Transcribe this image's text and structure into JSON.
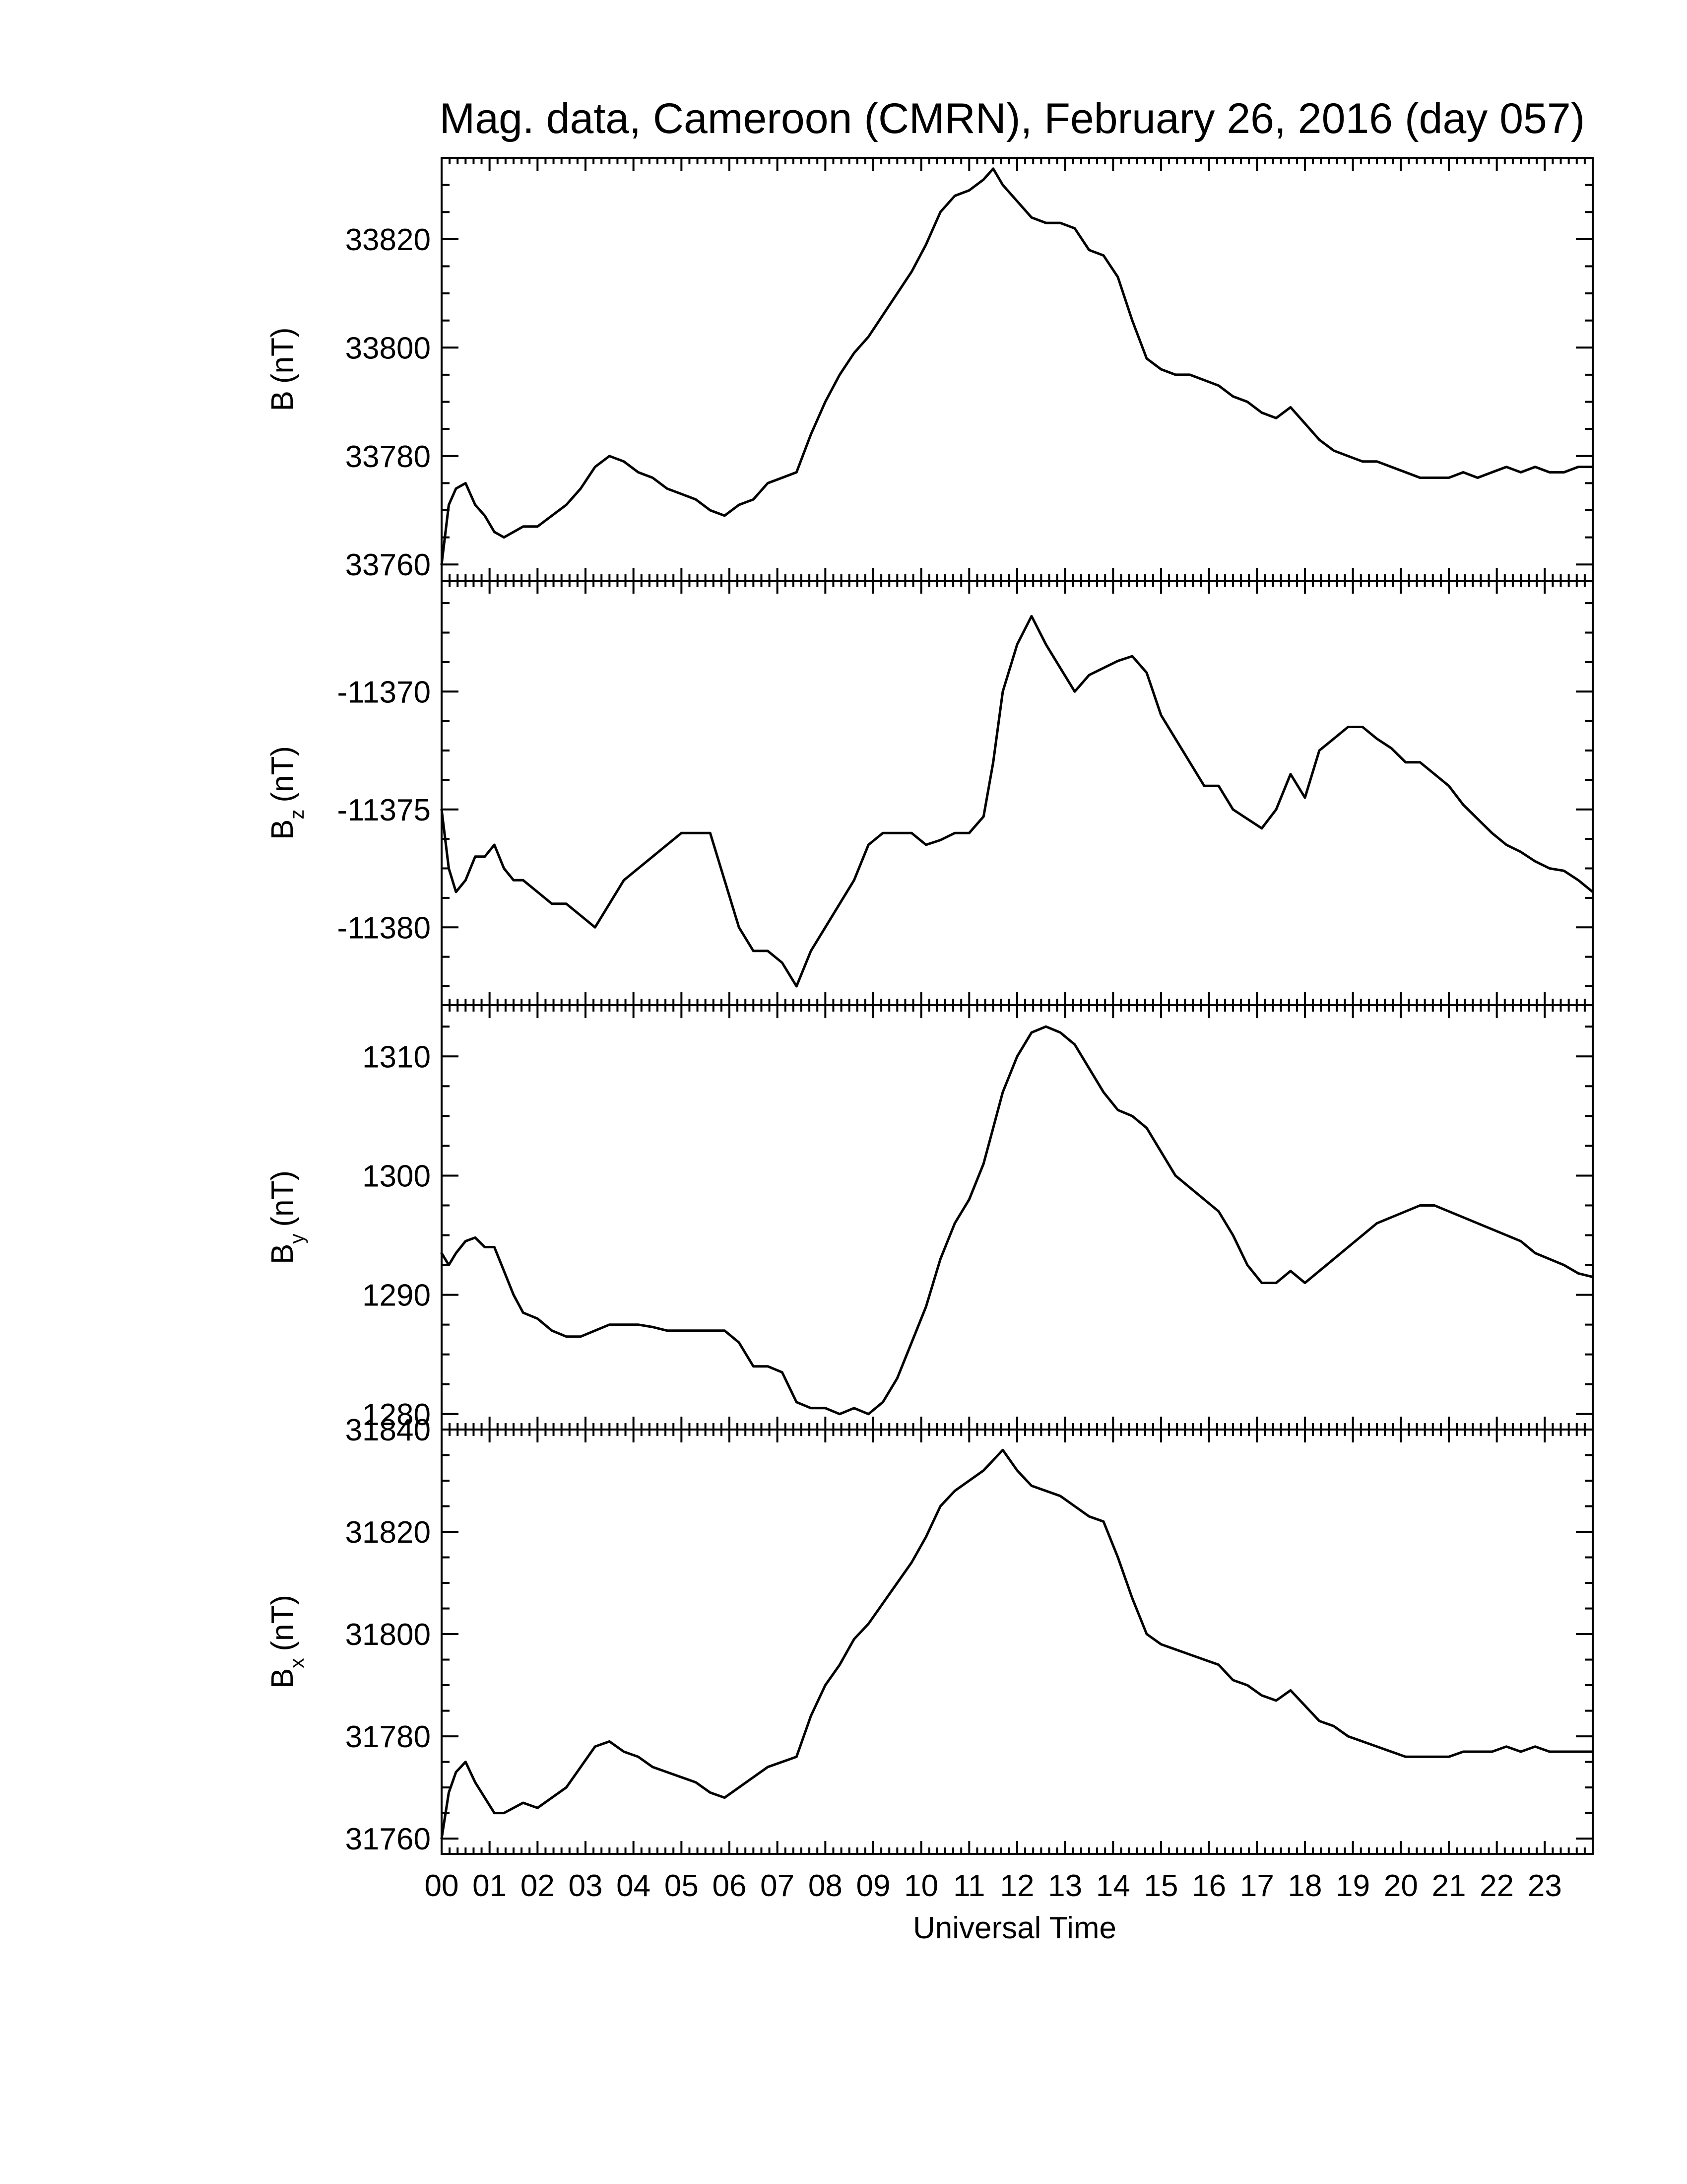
{
  "figure": {
    "title": "Mag. data, Cameroon (CMRN), February 26, 2016 (day 057)",
    "xlabel": "Universal Time"
  },
  "chart_data": [
    {
      "type": "line",
      "panel": "B",
      "ylabel": "B (nT)",
      "ylabel_main": "B",
      "ylabel_sub": "",
      "ylabel_unit": "(nT)",
      "xlim": [
        0,
        24
      ],
      "ylim": [
        33757,
        33835
      ],
      "yticks": [
        33760,
        33780,
        33800,
        33820
      ],
      "x": [
        0,
        0.15,
        0.3,
        0.5,
        0.7,
        0.9,
        1.1,
        1.3,
        1.5,
        1.7,
        2.0,
        2.3,
        2.6,
        2.9,
        3.2,
        3.5,
        3.8,
        4.1,
        4.4,
        4.7,
        5.0,
        5.3,
        5.6,
        5.9,
        6.2,
        6.5,
        6.8,
        7.1,
        7.4,
        7.7,
        8.0,
        8.3,
        8.6,
        8.9,
        9.2,
        9.5,
        9.8,
        10.1,
        10.4,
        10.7,
        11.0,
        11.3,
        11.5,
        11.7,
        12.0,
        12.3,
        12.6,
        12.9,
        13.2,
        13.5,
        13.8,
        14.1,
        14.4,
        14.7,
        15.0,
        15.3,
        15.6,
        15.9,
        16.2,
        16.5,
        16.8,
        17.1,
        17.4,
        17.7,
        18.0,
        18.3,
        18.6,
        18.9,
        19.2,
        19.5,
        19.8,
        20.1,
        20.4,
        20.7,
        21.0,
        21.3,
        21.6,
        21.9,
        22.2,
        22.5,
        22.8,
        23.1,
        23.4,
        23.7,
        24.0
      ],
      "series": [
        {
          "values": [
            33760,
            33771,
            33774,
            33775,
            33771,
            33769,
            33766,
            33765,
            33766,
            33767,
            33767,
            33769,
            33771,
            33774,
            33778,
            33780,
            33779,
            33777,
            33776,
            33774,
            33773,
            33772,
            33770,
            33769,
            33771,
            33772,
            33775,
            33776,
            33777,
            33784,
            33790,
            33795,
            33799,
            33802,
            33806,
            33810,
            33814,
            33819,
            33825,
            33828,
            33829,
            33831,
            33833,
            33830,
            33827,
            33824,
            33823,
            33823,
            33822,
            33818,
            33817,
            33813,
            33805,
            33798,
            33796,
            33795,
            33795,
            33794,
            33793,
            33791,
            33790,
            33788,
            33787,
            33789,
            33786,
            33783,
            33781,
            33780,
            33779,
            33779,
            33778,
            33777,
            33776,
            33776,
            33776,
            33777,
            33776,
            33777,
            33778,
            33777,
            33778,
            33777,
            33777,
            33778,
            33778
          ]
        }
      ]
    },
    {
      "type": "line",
      "panel": "Bz",
      "ylabel": "Bz (nT)",
      "ylabel_main": "B",
      "ylabel_sub": "z",
      "ylabel_unit": "(nT)",
      "xlim": [
        0,
        24
      ],
      "ylim": [
        -11383.3,
        -11365.3
      ],
      "yticks": [
        -11370,
        -11375,
        -11380
      ],
      "x": [
        0,
        0.15,
        0.3,
        0.5,
        0.7,
        0.9,
        1.1,
        1.3,
        1.5,
        1.7,
        2.0,
        2.3,
        2.6,
        2.9,
        3.2,
        3.5,
        3.8,
        4.1,
        4.4,
        4.7,
        5.0,
        5.3,
        5.6,
        5.9,
        6.2,
        6.5,
        6.8,
        7.1,
        7.4,
        7.7,
        8.0,
        8.3,
        8.6,
        8.9,
        9.2,
        9.5,
        9.8,
        10.1,
        10.4,
        10.7,
        11.0,
        11.3,
        11.5,
        11.7,
        12.0,
        12.3,
        12.6,
        12.9,
        13.2,
        13.5,
        13.8,
        14.1,
        14.4,
        14.7,
        15.0,
        15.3,
        15.6,
        15.9,
        16.2,
        16.5,
        16.8,
        17.1,
        17.4,
        17.7,
        18.0,
        18.3,
        18.6,
        18.9,
        19.2,
        19.5,
        19.8,
        20.1,
        20.4,
        20.7,
        21.0,
        21.3,
        21.6,
        21.9,
        22.2,
        22.5,
        22.8,
        23.1,
        23.4,
        23.7,
        24.0
      ],
      "series": [
        {
          "values": [
            -11375,
            -11377.5,
            -11378.5,
            -11378,
            -11377,
            -11377,
            -11376.5,
            -11377.5,
            -11378,
            -11378,
            -11378.5,
            -11379,
            -11379,
            -11379.5,
            -11380,
            -11379,
            -11378,
            -11377.5,
            -11377,
            -11376.5,
            -11376,
            -11376,
            -11376,
            -11378,
            -11380,
            -11381,
            -11381,
            -11381.5,
            -11382.5,
            -11381,
            -11380,
            -11379,
            -11378,
            -11376.5,
            -11376,
            -11376,
            -11376,
            -11376.5,
            -11376.3,
            -11376,
            -11376,
            -11375.3,
            -11373,
            -11370,
            -11368,
            -11366.8,
            -11368,
            -11369,
            -11370,
            -11369.3,
            -11369,
            -11368.7,
            -11368.5,
            -11369.2,
            -11371,
            -11372,
            -11373,
            -11374,
            -11374,
            -11375,
            -11375.4,
            -11375.8,
            -11375,
            -11373.5,
            -11374.5,
            -11372.5,
            -11372,
            -11371.5,
            -11371.5,
            -11372,
            -11372.4,
            -11373,
            -11373,
            -11373.5,
            -11374,
            -11374.8,
            -11375.4,
            -11376,
            -11376.5,
            -11376.8,
            -11377.2,
            -11377.5,
            -11377.6,
            -11378,
            -11378.5
          ]
        }
      ]
    },
    {
      "type": "line",
      "panel": "By",
      "ylabel": "By (nT)",
      "ylabel_main": "B",
      "ylabel_sub": "y",
      "ylabel_unit": "(nT)",
      "xlim": [
        0,
        24
      ],
      "ylim": [
        1278.7,
        1314.3
      ],
      "yticks": [
        1280,
        1290,
        1300,
        1310
      ],
      "x": [
        0,
        0.15,
        0.3,
        0.5,
        0.7,
        0.9,
        1.1,
        1.3,
        1.5,
        1.7,
        2.0,
        2.3,
        2.6,
        2.9,
        3.2,
        3.5,
        3.8,
        4.1,
        4.4,
        4.7,
        5.0,
        5.3,
        5.6,
        5.9,
        6.2,
        6.5,
        6.8,
        7.1,
        7.4,
        7.7,
        8.0,
        8.3,
        8.6,
        8.9,
        9.2,
        9.5,
        9.8,
        10.1,
        10.4,
        10.7,
        11.0,
        11.3,
        11.5,
        11.7,
        12.0,
        12.3,
        12.6,
        12.9,
        13.2,
        13.5,
        13.8,
        14.1,
        14.4,
        14.7,
        15.0,
        15.3,
        15.6,
        15.9,
        16.2,
        16.5,
        16.8,
        17.1,
        17.4,
        17.7,
        18.0,
        18.3,
        18.6,
        18.9,
        19.2,
        19.5,
        19.8,
        20.1,
        20.4,
        20.7,
        21.0,
        21.3,
        21.6,
        21.9,
        22.2,
        22.5,
        22.8,
        23.1,
        23.4,
        23.7,
        24.0
      ],
      "series": [
        {
          "values": [
            1293.5,
            1292.5,
            1293.5,
            1294.5,
            1294.8,
            1294,
            1294,
            1292,
            1290,
            1288.5,
            1288,
            1287,
            1286.5,
            1286.5,
            1287,
            1287.5,
            1287.5,
            1287.5,
            1287.3,
            1287,
            1287,
            1287,
            1287,
            1287,
            1286,
            1284,
            1284,
            1283.5,
            1281,
            1280.5,
            1280.5,
            1280,
            1280.5,
            1280,
            1281,
            1283,
            1286,
            1289,
            1293,
            1296,
            1298,
            1301,
            1304,
            1307,
            1310,
            1312,
            1312.5,
            1312,
            1311,
            1309,
            1307,
            1305.5,
            1305,
            1304,
            1302,
            1300,
            1299,
            1298,
            1297,
            1295,
            1292.5,
            1291,
            1291,
            1292,
            1291,
            1292,
            1293,
            1294,
            1295,
            1296,
            1296.5,
            1297,
            1297.5,
            1297.5,
            1297,
            1296.5,
            1296,
            1295.5,
            1295,
            1294.5,
            1293.5,
            1293,
            1292.5,
            1291.8,
            1291.5
          ]
        }
      ]
    },
    {
      "type": "line",
      "panel": "Bx",
      "ylabel": "Bx (nT)",
      "ylabel_main": "B",
      "ylabel_sub": "x",
      "ylabel_unit": "(nT)",
      "xlim": [
        0,
        24
      ],
      "ylim": [
        31757,
        31840
      ],
      "yticks": [
        31760,
        31780,
        31800,
        31820,
        31840
      ],
      "x": [
        0,
        0.15,
        0.3,
        0.5,
        0.7,
        0.9,
        1.1,
        1.3,
        1.5,
        1.7,
        2.0,
        2.3,
        2.6,
        2.9,
        3.2,
        3.5,
        3.8,
        4.1,
        4.4,
        4.7,
        5.0,
        5.3,
        5.6,
        5.9,
        6.2,
        6.5,
        6.8,
        7.1,
        7.4,
        7.7,
        8.0,
        8.3,
        8.6,
        8.9,
        9.2,
        9.5,
        9.8,
        10.1,
        10.4,
        10.7,
        11.0,
        11.3,
        11.5,
        11.7,
        12.0,
        12.3,
        12.6,
        12.9,
        13.2,
        13.5,
        13.8,
        14.1,
        14.4,
        14.7,
        15.0,
        15.3,
        15.6,
        15.9,
        16.2,
        16.5,
        16.8,
        17.1,
        17.4,
        17.7,
        18.0,
        18.3,
        18.6,
        18.9,
        19.2,
        19.5,
        19.8,
        20.1,
        20.4,
        20.7,
        21.0,
        21.3,
        21.6,
        21.9,
        22.2,
        22.5,
        22.8,
        23.1,
        23.4,
        23.7,
        24.0
      ],
      "series": [
        {
          "values": [
            31760,
            31769,
            31773,
            31775,
            31771,
            31768,
            31765,
            31765,
            31766,
            31767,
            31766,
            31768,
            31770,
            31774,
            31778,
            31779,
            31777,
            31776,
            31774,
            31773,
            31772,
            31771,
            31769,
            31768,
            31770,
            31772,
            31774,
            31775,
            31776,
            31784,
            31790,
            31794,
            31799,
            31802,
            31806,
            31810,
            31814,
            31819,
            31825,
            31828,
            31830,
            31832,
            31834,
            31836,
            31832,
            31829,
            31828,
            31827,
            31825,
            31823,
            31822,
            31815,
            31807,
            31800,
            31798,
            31797,
            31796,
            31795,
            31794,
            31791,
            31790,
            31788,
            31787,
            31789,
            31786,
            31783,
            31782,
            31780,
            31779,
            31778,
            31777,
            31776,
            31776,
            31776,
            31776,
            31777,
            31777,
            31777,
            31778,
            31777,
            31778,
            31777,
            31777,
            31777,
            31777
          ]
        }
      ]
    }
  ],
  "x_ticks": [
    "00",
    "01",
    "02",
    "03",
    "04",
    "05",
    "06",
    "07",
    "08",
    "09",
    "10",
    "11",
    "12",
    "13",
    "14",
    "15",
    "16",
    "17",
    "18",
    "19",
    "20",
    "21",
    "22",
    "23"
  ]
}
